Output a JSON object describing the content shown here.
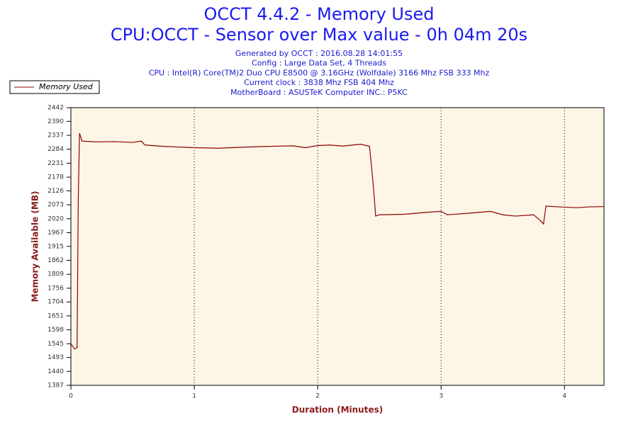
{
  "chart_data": {
    "type": "line",
    "title": "OCCT 4.4.2 - Memory Used",
    "subtitle": "CPU:OCCT - Sensor over Max value - 0h 04m 20s",
    "info_lines": [
      "Generated by OCCT : 2016.08.28 14:01:55",
      "Config : Large Data Set, 4 Threads",
      "CPU : Intel(R) Core(TM)2 Duo CPU E8500 @ 3.16GHz (Wolfdale) 3166 Mhz FSB 333 Mhz",
      "Current clock : 3838 Mhz FSB 404 Mhz",
      "MotherBoard : ASUSTeK Computer INC.: P5KC"
    ],
    "xlabel": "Duration (Minutes)",
    "ylabel": "Memory Available (MB)",
    "x": [
      0.0,
      0.03,
      0.05,
      0.06,
      0.07,
      0.09,
      0.2,
      0.35,
      0.5,
      0.57,
      0.6,
      0.75,
      0.9,
      1.0,
      1.2,
      1.4,
      1.6,
      1.8,
      1.9,
      2.0,
      2.1,
      2.2,
      2.35,
      2.42,
      2.45,
      2.47,
      2.5,
      2.7,
      2.9,
      3.0,
      3.05,
      3.2,
      3.4,
      3.5,
      3.6,
      3.75,
      3.8,
      3.83,
      3.85,
      4.0,
      4.1,
      4.2,
      4.32
    ],
    "series": [
      {
        "name": "Memory Used",
        "color": "#8b0000",
        "values": [
          1545,
          1525,
          1530,
          2100,
          2345,
          2315,
          2312,
          2313,
          2310,
          2315,
          2300,
          2295,
          2292,
          2290,
          2288,
          2292,
          2295,
          2297,
          2290,
          2298,
          2300,
          2296,
          2303,
          2295,
          2150,
          2030,
          2035,
          2037,
          2045,
          2048,
          2035,
          2040,
          2048,
          2035,
          2030,
          2035,
          2015,
          2000,
          2068,
          2064,
          2062,
          2065,
          2066
        ]
      }
    ],
    "xlim": [
      0,
      4.32
    ],
    "ylim": [
      1387,
      2442
    ],
    "xticks": [
      0,
      1,
      2,
      3,
      4
    ],
    "yticks": [
      1387,
      1440,
      1493,
      1545,
      1598,
      1651,
      1704,
      1756,
      1809,
      1862,
      1915,
      1967,
      2020,
      2073,
      2126,
      2178,
      2231,
      2284,
      2337,
      2390,
      2442
    ],
    "grid": true
  }
}
